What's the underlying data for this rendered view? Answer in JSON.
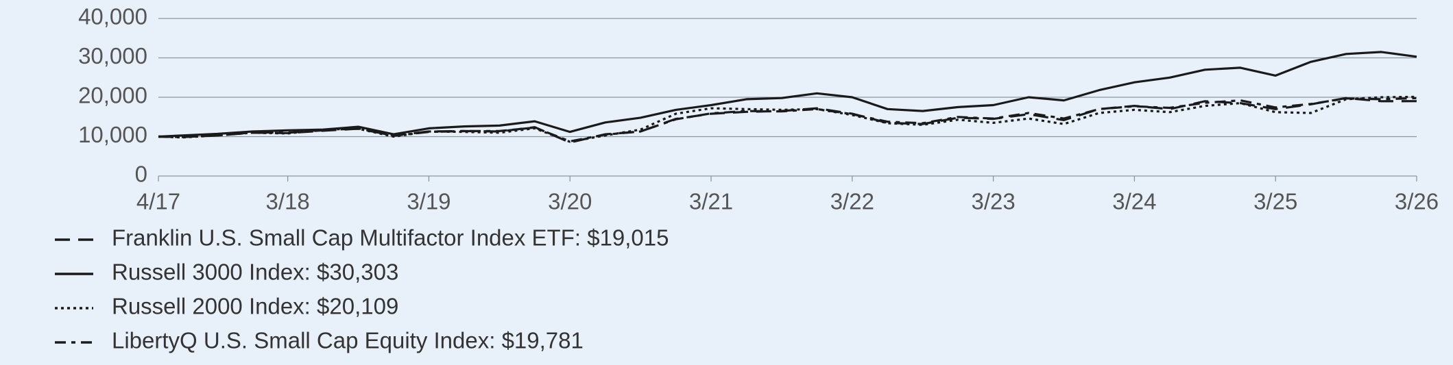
{
  "chart_data": {
    "type": "line",
    "x": [
      "4/17",
      "6/17",
      "9/17",
      "12/17",
      "3/18",
      "6/18",
      "9/18",
      "12/18",
      "3/19",
      "6/19",
      "9/19",
      "12/19",
      "3/20",
      "6/20",
      "9/20",
      "12/20",
      "3/21",
      "6/21",
      "9/21",
      "12/21",
      "3/22",
      "6/22",
      "9/22",
      "12/22",
      "3/23",
      "6/23",
      "9/23",
      "12/23",
      "3/24",
      "6/24",
      "9/24",
      "12/24",
      "3/25",
      "6/25",
      "9/25",
      "12/25",
      "3/26"
    ],
    "xlim": [
      "4/17",
      "3/26"
    ],
    "xticks": [
      "4/17",
      "3/18",
      "3/19",
      "3/20",
      "3/21",
      "3/22",
      "3/23",
      "3/24",
      "3/25",
      "3/26"
    ],
    "ylim": [
      0,
      40000
    ],
    "yticks": [
      0,
      {
        "value": 10000,
        "label": "10,000"
      },
      {
        "value": 20000,
        "label": "20,000"
      },
      {
        "value": 30000,
        "label": "30,000"
      },
      {
        "value": 40000,
        "label": "40,000"
      }
    ],
    "grid": true,
    "series": [
      {
        "name": "Franklin U.S. Small Cap Multifactor Index ETF: $19,015",
        "color": "#1a1a1a",
        "dash": "22,12",
        "values": [
          10000,
          9900,
          10300,
          11000,
          10900,
          11500,
          12000,
          10300,
          11300,
          11400,
          11300,
          12400,
          8500,
          10600,
          11300,
          14500,
          15800,
          16300,
          16500,
          17200,
          15800,
          13500,
          13200,
          14800,
          14500,
          15700,
          14200,
          17000,
          17800,
          17000,
          19000,
          18500,
          17000,
          18200,
          19800,
          19000,
          19015
        ]
      },
      {
        "name": "Russell 3000 Index: $30,303",
        "color": "#1a1a1a",
        "dash": "none",
        "values": [
          10000,
          10300,
          10700,
          11300,
          11600,
          11800,
          12500,
          10600,
          12100,
          12600,
          12800,
          13900,
          11200,
          13600,
          14800,
          16800,
          18000,
          19500,
          19800,
          21000,
          20000,
          17000,
          16500,
          17500,
          18000,
          20000,
          19200,
          21800,
          23800,
          25000,
          27000,
          27500,
          25500,
          29000,
          31000,
          31500,
          30303
        ]
      },
      {
        "name": "Russell 2000 Index: $20,109",
        "color": "#1a1a1a",
        "dash": "4,5",
        "values": [
          10000,
          9800,
          10300,
          11000,
          10800,
          11800,
          12000,
          10000,
          11300,
          11200,
          11000,
          12100,
          8700,
          10300,
          11800,
          15800,
          17200,
          17000,
          16800,
          17000,
          15500,
          13400,
          13000,
          14300,
          13500,
          14600,
          13200,
          16000,
          16800,
          16200,
          17800,
          18500,
          16200,
          16000,
          19500,
          20000,
          20109
        ]
      },
      {
        "name": "LibertyQ U.S. Small Cap Equity Index: $19,781",
        "color": "#1a1a1a",
        "dash": "16,8,6,8",
        "values": [
          10000,
          9900,
          10300,
          11100,
          11000,
          11600,
          12100,
          10200,
          11200,
          11400,
          11400,
          12300,
          8800,
          10500,
          11300,
          14400,
          15900,
          16500,
          16400,
          17000,
          15700,
          13800,
          13400,
          15000,
          14600,
          16000,
          14600,
          17000,
          17700,
          17300,
          18600,
          19200,
          17400,
          18300,
          19700,
          19500,
          19781
        ]
      }
    ]
  }
}
